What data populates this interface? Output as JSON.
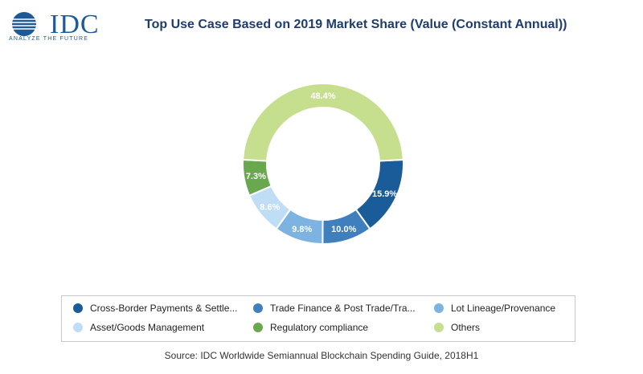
{
  "header": {
    "logo_word": "IDC",
    "logo_tagline": "ANALYZE THE FUTURE",
    "logo_color": "#1e5a97"
  },
  "chart_data": {
    "type": "pie",
    "title": "Top Use Case Based on 2019 Market Share (Value (Constant Annual))",
    "variant": "donut",
    "legend_position": "bottom",
    "unit": "%",
    "slices": [
      {
        "label": "Cross-Border Payments & Settle...",
        "value": 15.9,
        "display": "15.9%",
        "color": "#1a5b99"
      },
      {
        "label": "Trade Finance & Post Trade/Tra...",
        "value": 10.0,
        "display": "10.0%",
        "color": "#3f7fbd"
      },
      {
        "label": "Lot Lineage/Provenance",
        "value": 9.8,
        "display": "9.8%",
        "color": "#7db3e0"
      },
      {
        "label": "Asset/Goods Management",
        "value": 8.6,
        "display": "8.6%",
        "color": "#bfdef6"
      },
      {
        "label": "Regulatory compliance",
        "value": 7.3,
        "display": "7.3%",
        "color": "#6aa84f"
      },
      {
        "label": "Others",
        "value": 48.4,
        "display": "48.4%",
        "color": "#c5df8f"
      }
    ]
  },
  "footer": {
    "source": "Source: IDC Worldwide Semiannual Blockchain Spending Guide, 2018H1"
  }
}
